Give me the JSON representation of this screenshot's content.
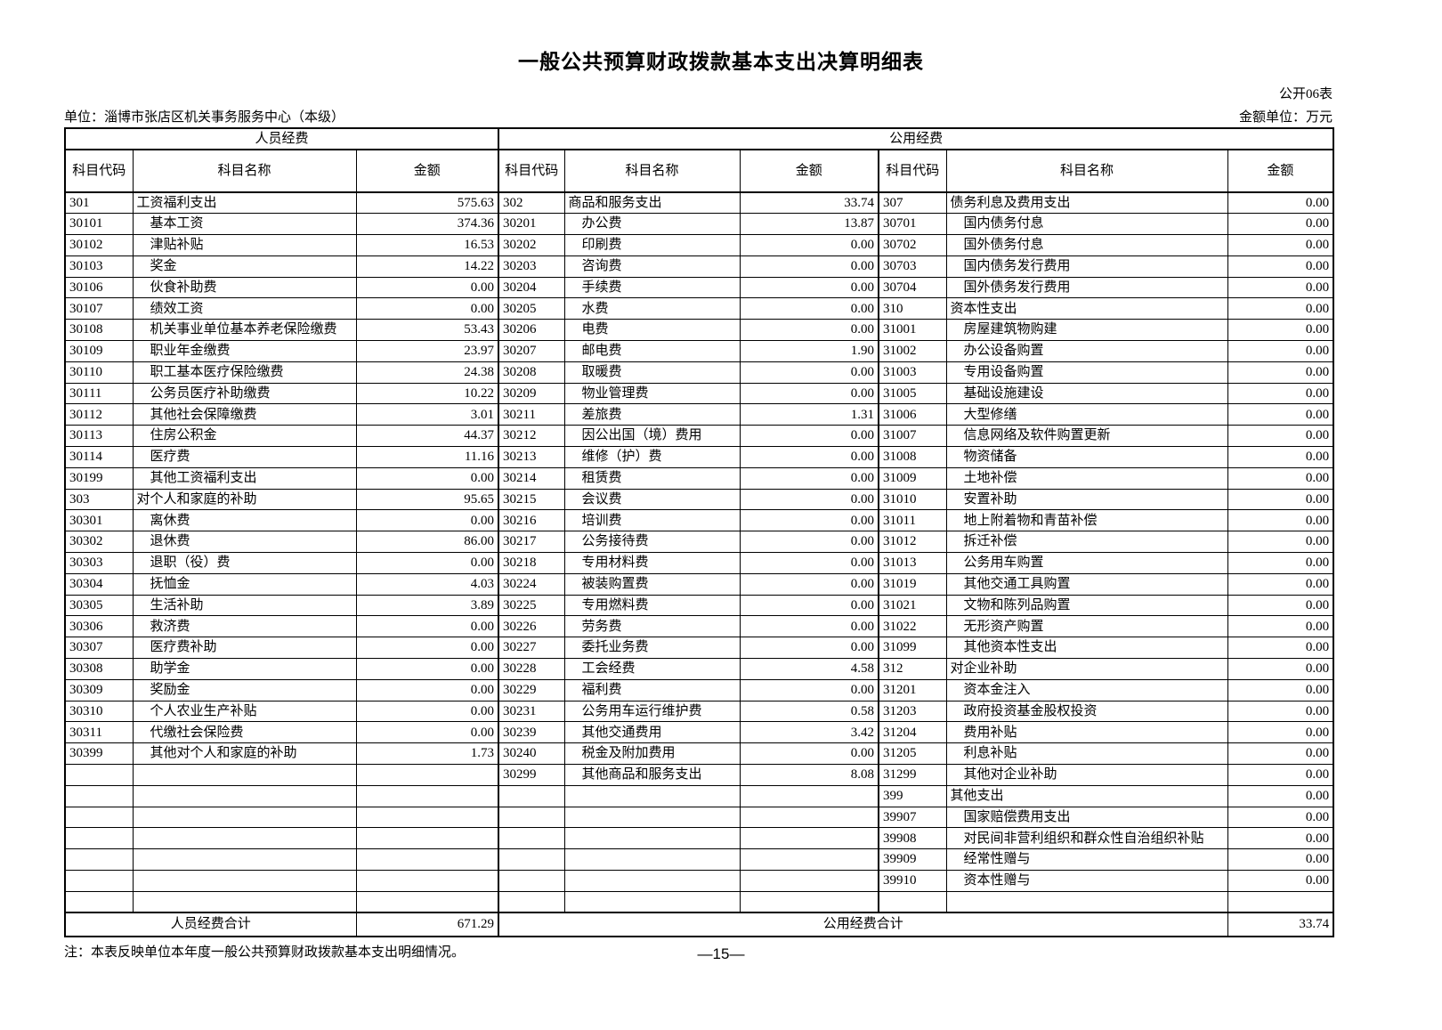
{
  "page": {
    "title": "一般公共预算财政拨款基本支出决算明细表",
    "form_code": "公开06表",
    "unit": "单位：淄博市张店区机关事务服务中心（本级）",
    "amount_unit": "金额单位：万元",
    "note": "注：本表反映单位本年度一般公共预算财政拨款基本支出明细情况。",
    "page_number": "—15—"
  },
  "table": {
    "row_count": 34,
    "group_headers": [
      "人员经费",
      "公用经费"
    ],
    "column_headers": [
      "科目代码",
      "科目名称",
      "金额"
    ],
    "totals": {
      "personnel_label": "人员经费合计",
      "personnel_value": "671.29",
      "public_label": "公用经费合计",
      "public_value": "33.74"
    },
    "sections": [
      {
        "id": "personnel",
        "rows": [
          [
            "301",
            "工资福利支出",
            "575.63"
          ],
          [
            "30101",
            "基本工资",
            "374.36"
          ],
          [
            "30102",
            "津贴补贴",
            "16.53"
          ],
          [
            "30103",
            "奖金",
            "14.22"
          ],
          [
            "30106",
            "伙食补助费",
            "0.00"
          ],
          [
            "30107",
            "绩效工资",
            "0.00"
          ],
          [
            "30108",
            "机关事业单位基本养老保险缴费",
            "53.43"
          ],
          [
            "30109",
            "职业年金缴费",
            "23.97"
          ],
          [
            "30110",
            "职工基本医疗保险缴费",
            "24.38"
          ],
          [
            "30111",
            "公务员医疗补助缴费",
            "10.22"
          ],
          [
            "30112",
            "其他社会保障缴费",
            "3.01"
          ],
          [
            "30113",
            "住房公积金",
            "44.37"
          ],
          [
            "30114",
            "医疗费",
            "11.16"
          ],
          [
            "30199",
            "其他工资福利支出",
            "0.00"
          ],
          [
            "303",
            "对个人和家庭的补助",
            "95.65"
          ],
          [
            "30301",
            "离休费",
            "0.00"
          ],
          [
            "30302",
            "退休费",
            "86.00"
          ],
          [
            "30303",
            "退职（役）费",
            "0.00"
          ],
          [
            "30304",
            "抚恤金",
            "4.03"
          ],
          [
            "30305",
            "生活补助",
            "3.89"
          ],
          [
            "30306",
            "救济费",
            "0.00"
          ],
          [
            "30307",
            "医疗费补助",
            "0.00"
          ],
          [
            "30308",
            "助学金",
            "0.00"
          ],
          [
            "30309",
            "奖励金",
            "0.00"
          ],
          [
            "30310",
            "个人农业生产补贴",
            "0.00"
          ],
          [
            "30311",
            "代缴社会保险费",
            "0.00"
          ],
          [
            "30399",
            "其他对个人和家庭的补助",
            "1.73"
          ]
        ]
      },
      {
        "id": "public-goods-services",
        "rows": [
          [
            "302",
            "商品和服务支出",
            "33.74"
          ],
          [
            "30201",
            "办公费",
            "13.87"
          ],
          [
            "30202",
            "印刷费",
            "0.00"
          ],
          [
            "30203",
            "咨询费",
            "0.00"
          ],
          [
            "30204",
            "手续费",
            "0.00"
          ],
          [
            "30205",
            "水费",
            "0.00"
          ],
          [
            "30206",
            "电费",
            "0.00"
          ],
          [
            "30207",
            "邮电费",
            "1.90"
          ],
          [
            "30208",
            "取暖费",
            "0.00"
          ],
          [
            "30209",
            "物业管理费",
            "0.00"
          ],
          [
            "30211",
            "差旅费",
            "1.31"
          ],
          [
            "30212",
            "因公出国（境）费用",
            "0.00"
          ],
          [
            "30213",
            "维修（护）费",
            "0.00"
          ],
          [
            "30214",
            "租赁费",
            "0.00"
          ],
          [
            "30215",
            "会议费",
            "0.00"
          ],
          [
            "30216",
            "培训费",
            "0.00"
          ],
          [
            "30217",
            "公务接待费",
            "0.00"
          ],
          [
            "30218",
            "专用材料费",
            "0.00"
          ],
          [
            "30224",
            "被装购置费",
            "0.00"
          ],
          [
            "30225",
            "专用燃料费",
            "0.00"
          ],
          [
            "30226",
            "劳务费",
            "0.00"
          ],
          [
            "30227",
            "委托业务费",
            "0.00"
          ],
          [
            "30228",
            "工会经费",
            "4.58"
          ],
          [
            "30229",
            "福利费",
            "0.00"
          ],
          [
            "30231",
            "公务用车运行维护费",
            "0.58"
          ],
          [
            "30239",
            "其他交通费用",
            "3.42"
          ],
          [
            "30240",
            "税金及附加费用",
            "0.00"
          ],
          [
            "30299",
            "其他商品和服务支出",
            "8.08"
          ]
        ]
      },
      {
        "id": "public-capital-other",
        "rows": [
          [
            "307",
            "债务利息及费用支出",
            "0.00"
          ],
          [
            "30701",
            "国内债务付息",
            "0.00"
          ],
          [
            "30702",
            "国外债务付息",
            "0.00"
          ],
          [
            "30703",
            "国内债务发行费用",
            "0.00"
          ],
          [
            "30704",
            "国外债务发行费用",
            "0.00"
          ],
          [
            "310",
            "资本性支出",
            "0.00"
          ],
          [
            "31001",
            "房屋建筑物购建",
            "0.00"
          ],
          [
            "31002",
            "办公设备购置",
            "0.00"
          ],
          [
            "31003",
            "专用设备购置",
            "0.00"
          ],
          [
            "31005",
            "基础设施建设",
            "0.00"
          ],
          [
            "31006",
            "大型修缮",
            "0.00"
          ],
          [
            "31007",
            "信息网络及软件购置更新",
            "0.00"
          ],
          [
            "31008",
            "物资储备",
            "0.00"
          ],
          [
            "31009",
            "土地补偿",
            "0.00"
          ],
          [
            "31010",
            "安置补助",
            "0.00"
          ],
          [
            "31011",
            "地上附着物和青苗补偿",
            "0.00"
          ],
          [
            "31012",
            "拆迁补偿",
            "0.00"
          ],
          [
            "31013",
            "公务用车购置",
            "0.00"
          ],
          [
            "31019",
            "其他交通工具购置",
            "0.00"
          ],
          [
            "31021",
            "文物和陈列品购置",
            "0.00"
          ],
          [
            "31022",
            "无形资产购置",
            "0.00"
          ],
          [
            "31099",
            "其他资本性支出",
            "0.00"
          ],
          [
            "312",
            "对企业补助",
            "0.00"
          ],
          [
            "31201",
            "资本金注入",
            "0.00"
          ],
          [
            "31203",
            "政府投资基金股权投资",
            "0.00"
          ],
          [
            "31204",
            "费用补贴",
            "0.00"
          ],
          [
            "31205",
            "利息补贴",
            "0.00"
          ],
          [
            "31299",
            "其他对企业补助",
            "0.00"
          ],
          [
            "399",
            "其他支出",
            "0.00"
          ],
          [
            "39907",
            "国家赔偿费用支出",
            "0.00"
          ],
          [
            "39908",
            "对民间非营利组织和群众性自治组织补贴",
            "0.00"
          ],
          [
            "39909",
            "经常性赠与",
            "0.00"
          ],
          [
            "39910",
            "资本性赠与",
            "0.00"
          ]
        ]
      }
    ]
  }
}
